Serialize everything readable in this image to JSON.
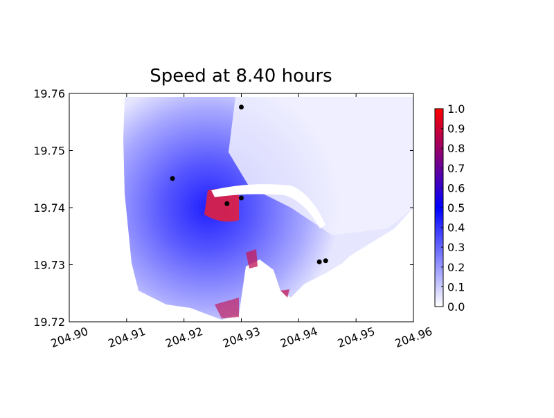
{
  "chart_data": {
    "type": "scatter",
    "title": "Speed at 8.40 hours",
    "x": [
      204.93,
      204.918,
      204.9275,
      204.93,
      204.9436,
      204.9447
    ],
    "values": [
      19.7576,
      19.7451,
      19.7407,
      19.7417,
      19.7305,
      19.7307
    ],
    "color": "#000000",
    "xlim": [
      204.9,
      204.96
    ],
    "xticks": [
      {
        "value": 204.9,
        "label": "204.90"
      },
      {
        "value": 204.91,
        "label": "204.91"
      },
      {
        "value": 204.92,
        "label": "204.92"
      },
      {
        "value": 204.93,
        "label": "204.93"
      },
      {
        "value": 204.94,
        "label": "204.94"
      },
      {
        "value": 204.95,
        "label": "204.95"
      },
      {
        "value": 204.96,
        "label": "204.96"
      }
    ],
    "ylim": [
      19.72,
      19.76
    ],
    "yticks": [
      19.72,
      19.73,
      19.74,
      19.75,
      19.76
    ],
    "colorbar": {
      "lim": [
        0,
        1
      ],
      "colors": [
        "#ffffff",
        "#0000ff",
        "#ff0000"
      ],
      "ticks": [
        {
          "value": 0,
          "label": "0.0"
        },
        {
          "value": 0.1,
          "label": "0.1"
        },
        {
          "value": 0.2,
          "label": "0.2"
        },
        {
          "value": 0.3,
          "label": "0.3"
        },
        {
          "value": 0.4,
          "label": "0.4"
        },
        {
          "value": 0.5,
          "label": "0.5"
        },
        {
          "value": 0.6,
          "label": "0.6"
        },
        {
          "value": 0.7,
          "label": "0.7"
        },
        {
          "value": 0.8,
          "label": "0.8"
        },
        {
          "value": 0.9,
          "label": "0.9"
        },
        {
          "value": 1,
          "label": "1.0"
        }
      ]
    }
  }
}
